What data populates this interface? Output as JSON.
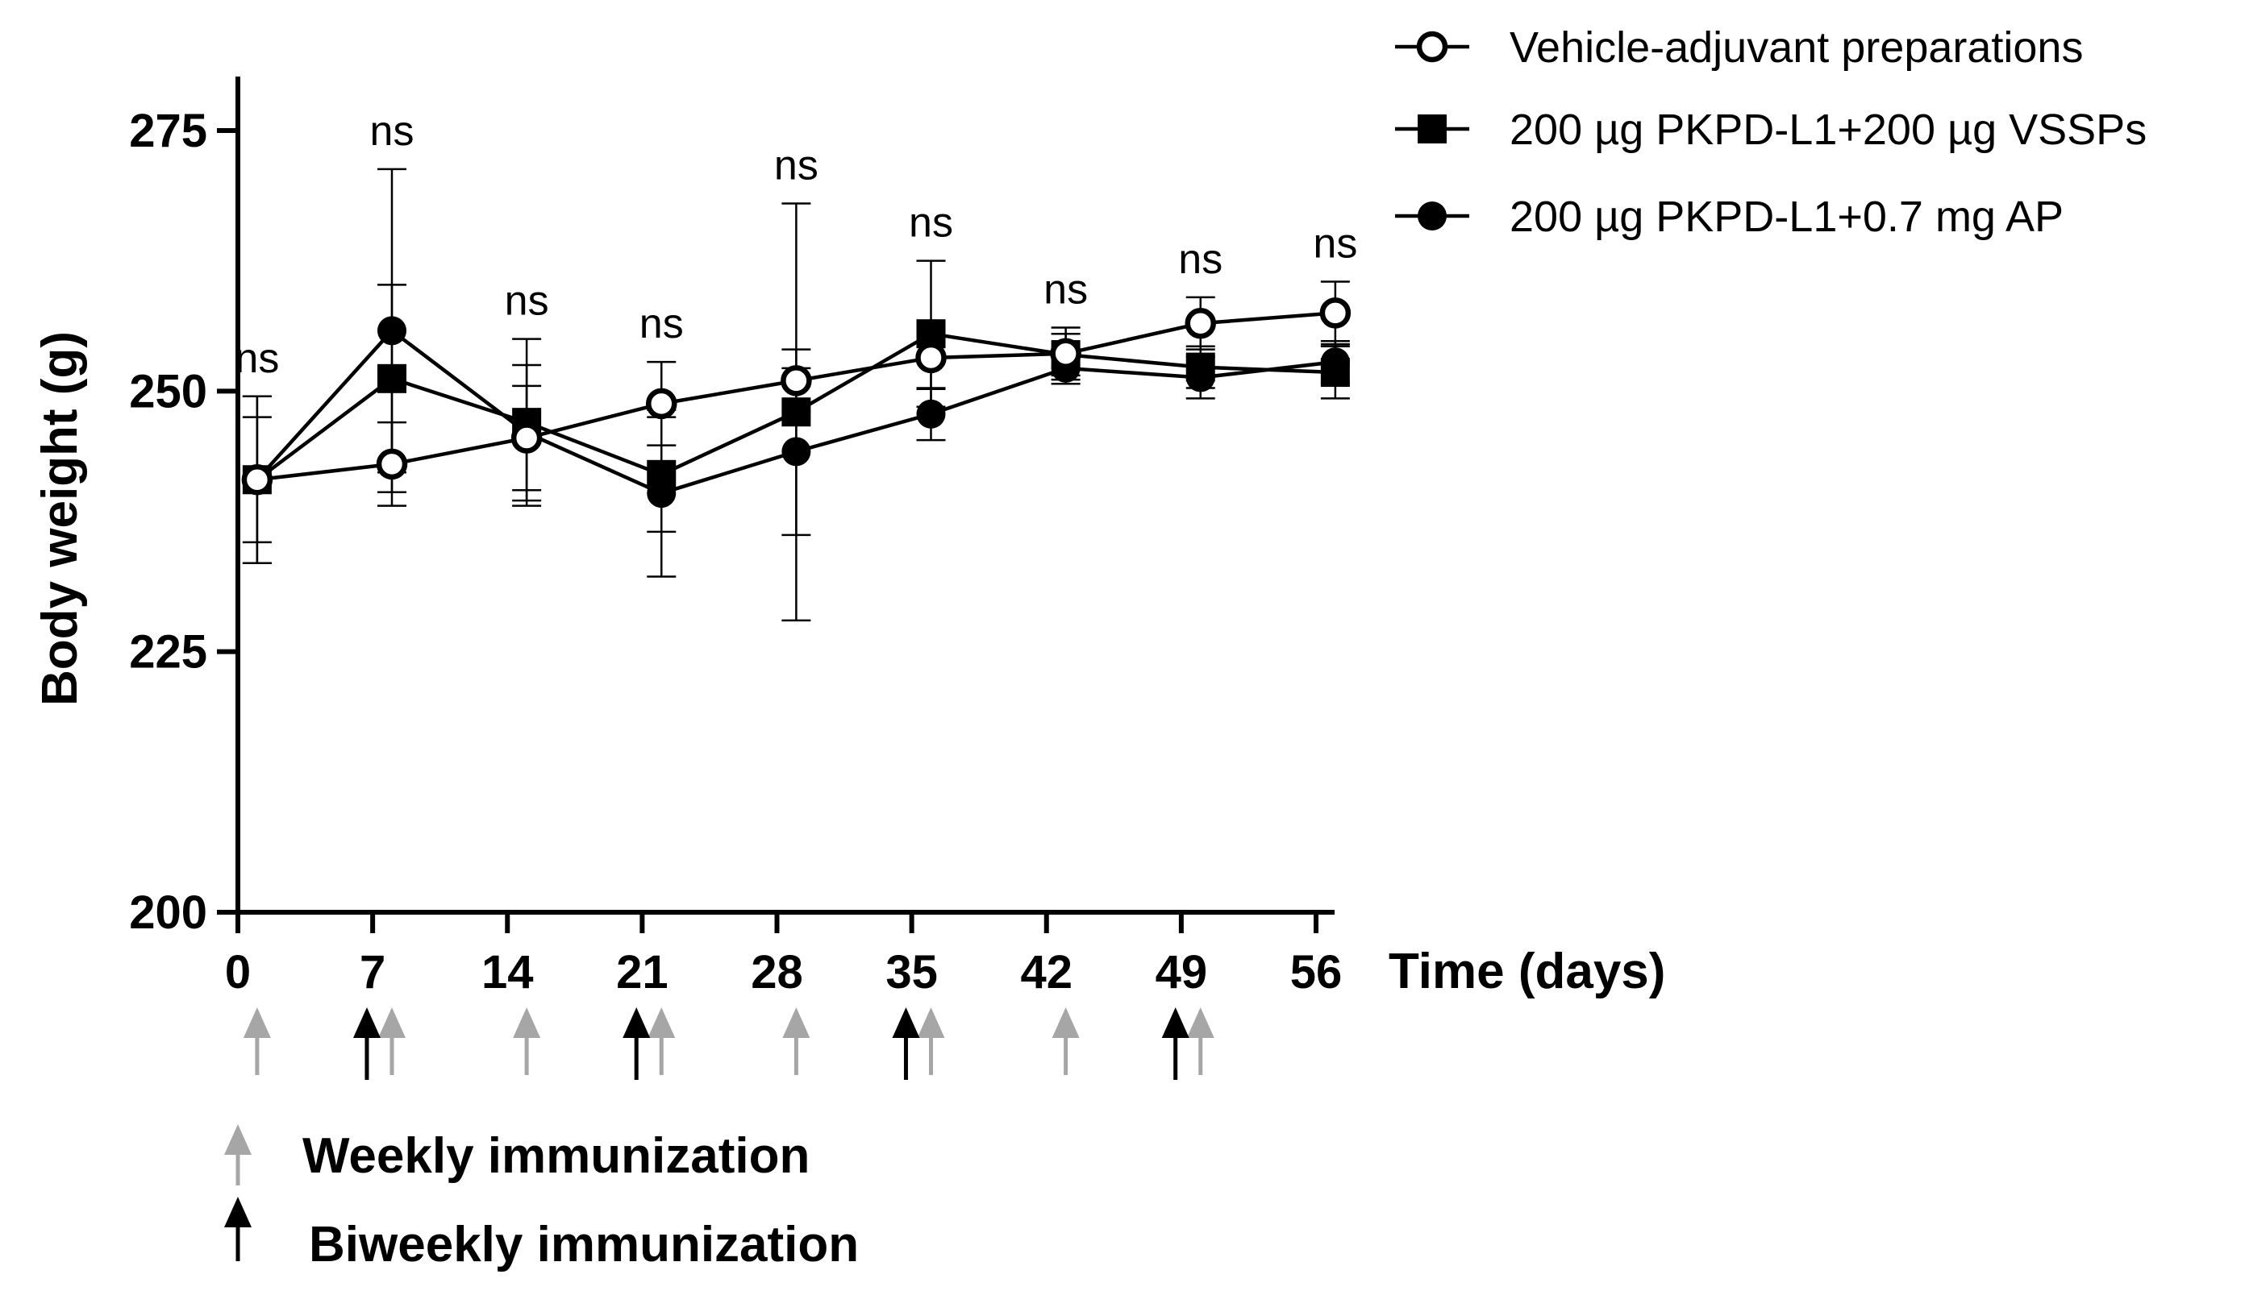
{
  "chart_data": {
    "type": "line",
    "title": "",
    "xlabel": "Time (days)",
    "ylabel": "Body weight (g)",
    "xlim": [
      0,
      56
    ],
    "ylim": [
      200,
      280
    ],
    "x_ticks": [
      "0",
      "7",
      "14",
      "21",
      "28",
      "35",
      "42",
      "49",
      "56"
    ],
    "y_ticks": [
      "200",
      "225",
      "250",
      "275"
    ],
    "x": [
      1,
      8,
      15,
      22,
      29,
      36,
      43,
      50,
      57
    ],
    "series": [
      {
        "name": "Vehicle-adjuvant preparations",
        "marker": "open-circle",
        "values": [
          241.5,
          243,
          245.5,
          248.8,
          251,
          253.2,
          253.6,
          256.5,
          257.5
        ],
        "errors": [
          8,
          4,
          5,
          4,
          3,
          3,
          2.5,
          2.5,
          3
        ]
      },
      {
        "name": "200 µg PKPD-L1+200 µg VSSPs",
        "marker": "filled-square",
        "values": [
          241.5,
          251.2,
          247,
          242,
          248,
          255.5,
          253.5,
          252.3,
          251.8
        ],
        "errors": [
          6,
          9,
          8,
          5.5,
          20,
          7,
          2,
          2,
          2.5
        ]
      },
      {
        "name": "200 µg PKPD-L1+0.7 mg AP",
        "marker": "filled-circle",
        "values": [
          241.5,
          255.8,
          246,
          240.2,
          244.2,
          247.8,
          252.2,
          251.3,
          252.8
        ],
        "errors": [
          8,
          15.5,
          6.5,
          8,
          8,
          2.5,
          1.5,
          2,
          2
        ]
      }
    ],
    "annotations": [
      "ns",
      "ns",
      "ns",
      "ns",
      "ns",
      "ns",
      "ns",
      "ns",
      "ns"
    ],
    "weekly_immunization_days": [
      0,
      7,
      14,
      21,
      28,
      35,
      42,
      49
    ],
    "biweekly_immunization_days": [
      7,
      21,
      35,
      49
    ],
    "legend_position": "top-right"
  },
  "footnotes": {
    "weekly_label": "Weekly immunization",
    "biweekly_label": "Biweekly immunization",
    "weekly_color": "#a6a6a6",
    "biweekly_color": "#000000"
  }
}
